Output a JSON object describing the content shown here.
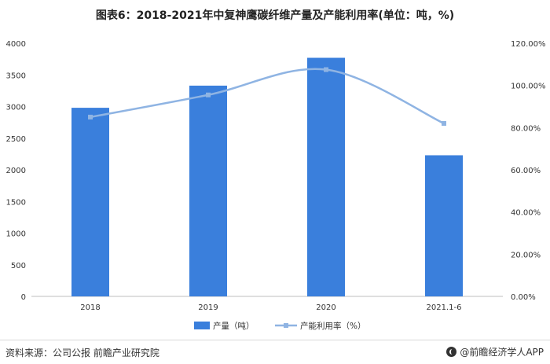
{
  "title": "图表6：2018-2021年中复神鹰碳纤维产量及产能利用率(单位：吨，%)",
  "chart_data": {
    "type": "bar",
    "categories": [
      "2018",
      "2019",
      "2020",
      "2021.1-6"
    ],
    "series": [
      {
        "name": "产量（吨）",
        "type": "bar",
        "axis": "left",
        "color": "#3a7fdc",
        "values": [
          2980,
          3330,
          3770,
          2230
        ]
      },
      {
        "name": "产能利用率（%）",
        "type": "line",
        "axis": "right",
        "color": "#8fb4e3",
        "values": [
          85.0,
          95.5,
          107.5,
          82.0
        ]
      }
    ],
    "yleft": {
      "min": 0,
      "max": 4000,
      "ticks": [
        "0",
        "500",
        "1000",
        "1500",
        "2000",
        "2500",
        "3000",
        "3500",
        "4000"
      ]
    },
    "yright": {
      "min": 0,
      "max": 120,
      "ticks": [
        "0.00%",
        "20.00%",
        "40.00%",
        "60.00%",
        "80.00%",
        "100.00%",
        "120.00%"
      ]
    },
    "legend_position": "bottom",
    "grid": false
  },
  "footer": {
    "source": "资料来源：公司公报 前瞻产业研究院",
    "brand": "@前瞻经济学人APP"
  }
}
